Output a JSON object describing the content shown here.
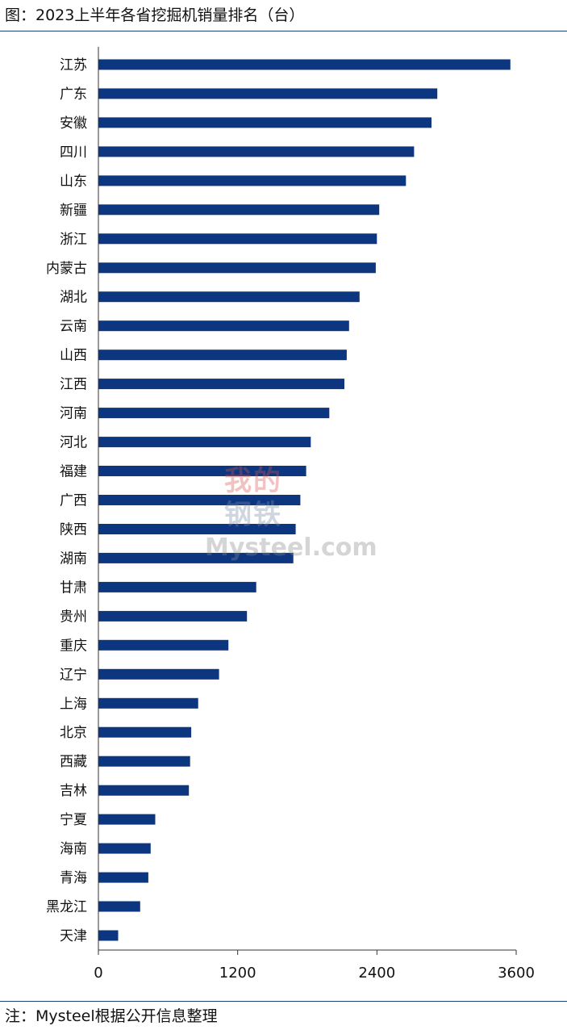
{
  "header": {
    "title": "图：2023上半年各省挖掘机销量排名（台）"
  },
  "footer": {
    "note": "注：Mysteel根据公开信息整理"
  },
  "watermark": {
    "line1": "我的",
    "line2": "钢铁",
    "brand": "Mysteel.com"
  },
  "colors": {
    "bar": "#0d3680",
    "axis": "#333333",
    "rule": "#1f3f7a"
  },
  "chart_data": {
    "type": "bar",
    "orientation": "horizontal",
    "title": "图：2023上半年各省挖掘机销量排名（台）",
    "xlabel": "",
    "ylabel": "",
    "xlim": [
      0,
      3600
    ],
    "xticks": [
      0,
      1200,
      2400,
      3600
    ],
    "grid": false,
    "categories": [
      "江苏",
      "广东",
      "安徽",
      "四川",
      "山东",
      "新疆",
      "浙江",
      "内蒙古",
      "湖北",
      "云南",
      "山西",
      "江西",
      "河南",
      "河北",
      "福建",
      "广西",
      "陕西",
      "湖南",
      "甘肃",
      "贵州",
      "重庆",
      "辽宁",
      "上海",
      "北京",
      "西藏",
      "吉林",
      "宁夏",
      "海南",
      "青海",
      "黑龙江",
      "天津"
    ],
    "values": [
      3550,
      2920,
      2870,
      2720,
      2650,
      2420,
      2400,
      2390,
      2250,
      2160,
      2140,
      2120,
      1990,
      1830,
      1790,
      1740,
      1700,
      1680,
      1360,
      1280,
      1120,
      1040,
      860,
      800,
      790,
      780,
      490,
      450,
      430,
      360,
      170
    ]
  }
}
